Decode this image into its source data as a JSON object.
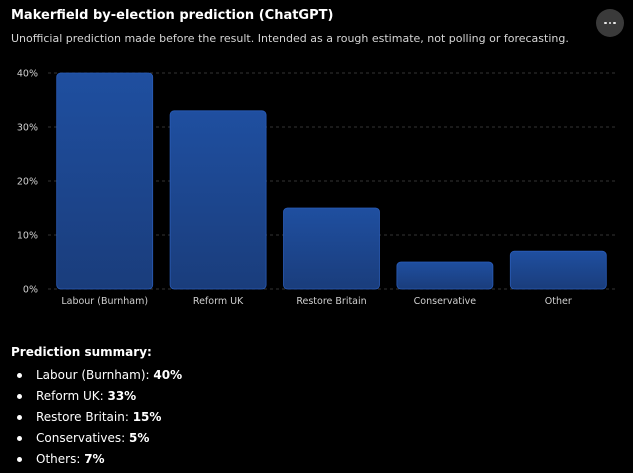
{
  "header": {
    "title": "Makerfield by-election prediction (ChatGPT)",
    "subtitle": "Unofficial prediction made before the result. Intended as a rough estimate, not polling or forecasting.",
    "menu_icon": "more-horizontal-icon"
  },
  "chart_data": {
    "type": "bar",
    "title": "",
    "xlabel": "",
    "ylabel": "",
    "categories": [
      "Labour (Burnham)",
      "Reform UK",
      "Restore Britain",
      "Conservative",
      "Other"
    ],
    "values": [
      40,
      33,
      15,
      5,
      7
    ],
    "ylim": [
      0,
      40
    ],
    "yticks": [
      0,
      10,
      20,
      30,
      40
    ],
    "ytick_labels": [
      "0%",
      "10%",
      "20%",
      "30%",
      "40%"
    ],
    "grid": true,
    "legend": "none",
    "colors": {
      "bar_top": "#1f4fa0",
      "bar_bottom": "#1a3d7c",
      "bar_stroke": "#2a5cb8",
      "grid": "#333333",
      "tick_text": "#d0d0d0"
    }
  },
  "summary": {
    "title": "Prediction summary:",
    "items": [
      {
        "label": "Labour (Burnham): ",
        "value": "40%"
      },
      {
        "label": "Reform UK: ",
        "value": "33%"
      },
      {
        "label": "Restore Britain: ",
        "value": "15%"
      },
      {
        "label": "Conservatives: ",
        "value": "5%"
      },
      {
        "label": "Others: ",
        "value": "7%"
      }
    ]
  }
}
